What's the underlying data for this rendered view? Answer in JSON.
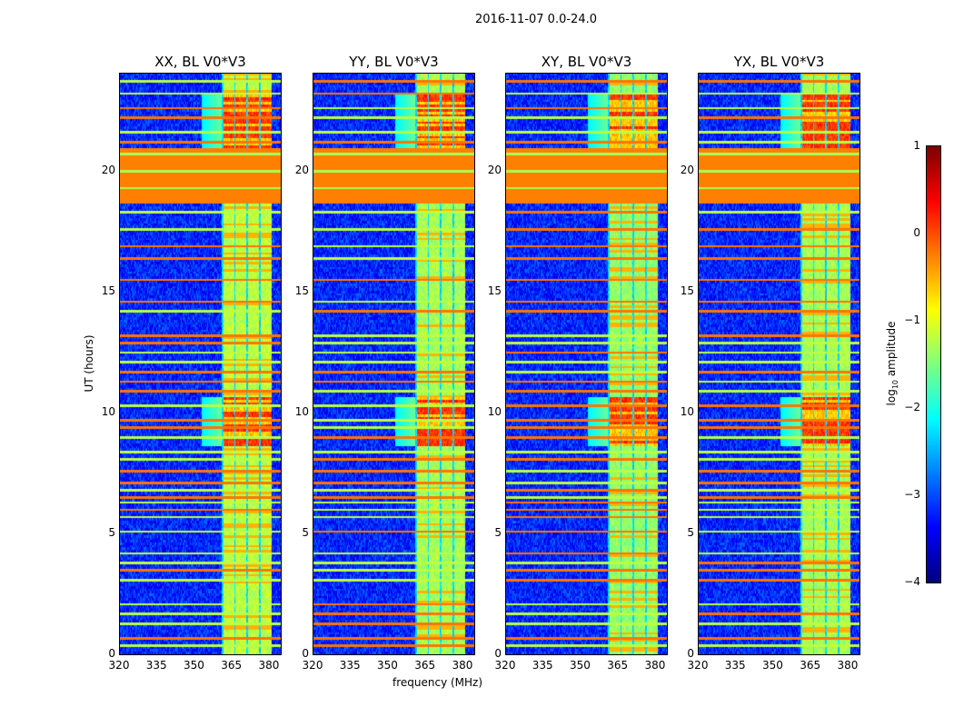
{
  "chart_data": {
    "type": "heatmap",
    "title": "2016-11-07 0.0-24.0",
    "xlabel": "frequency (MHz)",
    "ylabel": "UT (hours)",
    "xlim": [
      320,
      384.4
    ],
    "ylim": [
      0,
      24
    ],
    "xticks": [
      "320",
      "335",
      "350",
      "365",
      "380"
    ],
    "xtick_values": [
      320,
      335,
      350,
      365,
      380
    ],
    "yticks": [
      "0",
      "5",
      "10",
      "15",
      "20"
    ],
    "ytick_values": [
      0,
      5,
      10,
      15,
      20
    ],
    "panels": [
      {
        "title": "XX, BL V0*V3",
        "band": [
          360.7,
          380.7
        ],
        "band_level": -1.2
      },
      {
        "title": "YY, BL V0*V3",
        "band": [
          360.7,
          380.7
        ],
        "band_level": -1.3
      },
      {
        "title": "XY, BL V0*V3",
        "band": [
          360.7,
          380.7
        ],
        "band_level": -1.4
      },
      {
        "title": "YX, BL V0*V3",
        "band": [
          360.7,
          380.7
        ],
        "band_level": -1.3
      }
    ],
    "background_level": -3.2,
    "saturated_block_hours": [
      18.6,
      20.9
    ],
    "saturated_block_level": -0.25,
    "strong_band_hours": [
      [
        8.6,
        10.6
      ],
      [
        20.9,
        23.2
      ]
    ],
    "rfi_line_hours": [
      0.3,
      0.6,
      1.2,
      1.6,
      2.0,
      3.0,
      3.4,
      3.7,
      4.1,
      5.0,
      5.6,
      5.9,
      6.2,
      6.4,
      6.7,
      7.0,
      7.5,
      8.0,
      8.3,
      8.9,
      9.3,
      9.6,
      10.2,
      10.8,
      11.2,
      11.6,
      12.0,
      12.4,
      12.8,
      13.1,
      14.1,
      14.5,
      15.4,
      16.3,
      16.8,
      17.5,
      18.2,
      21.1,
      21.5,
      22.1,
      22.5,
      23.1,
      23.6
    ],
    "colorbar": {
      "label": "log",
      "label_sub": "10",
      "label_rest": " amplitude",
      "ticks": [
        "1",
        "0",
        "−1",
        "−2",
        "−3",
        "−4"
      ],
      "tick_values": [
        1,
        0,
        -1,
        -2,
        -3,
        -4
      ],
      "range": [
        -4,
        1
      ],
      "colormap": "jet"
    }
  }
}
